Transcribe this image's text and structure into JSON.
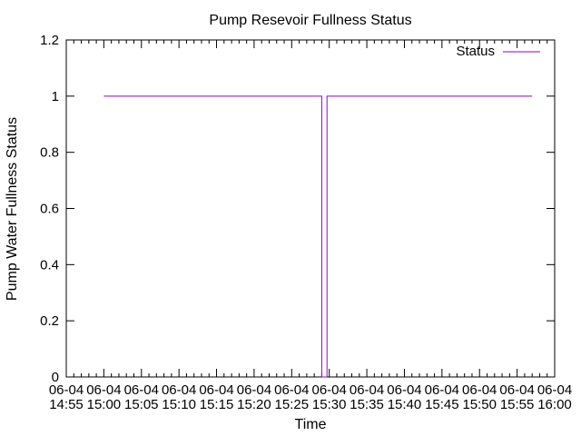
{
  "chart_data": {
    "type": "line",
    "title": "Pump Resevoir Fullness Status",
    "xlabel": "Time",
    "ylabel": "Pump Water Fullness Status",
    "xlim": [
      "14:55",
      "16:00"
    ],
    "ylim": [
      0,
      1.2
    ],
    "grid": false,
    "legend_position": "top-right",
    "x_ticks": [
      {
        "t": "14:55",
        "line1": "06-04",
        "line2": "14:55"
      },
      {
        "t": "15:00",
        "line1": "06-04",
        "line2": "15:00"
      },
      {
        "t": "15:05",
        "line1": "06-04",
        "line2": "15:05"
      },
      {
        "t": "15:10",
        "line1": "06-04",
        "line2": "15:10"
      },
      {
        "t": "15:15",
        "line1": "06-04",
        "line2": "15:15"
      },
      {
        "t": "15:20",
        "line1": "06-04",
        "line2": "15:20"
      },
      {
        "t": "15:25",
        "line1": "06-04",
        "line2": "15:25"
      },
      {
        "t": "15:30",
        "line1": "06-04",
        "line2": "15:30"
      },
      {
        "t": "15:35",
        "line1": "06-04",
        "line2": "15:35"
      },
      {
        "t": "15:40",
        "line1": "06-04",
        "line2": "15:40"
      },
      {
        "t": "15:45",
        "line1": "06-04",
        "line2": "15:45"
      },
      {
        "t": "15:50",
        "line1": "06-04",
        "line2": "15:50"
      },
      {
        "t": "15:55",
        "line1": "06-04",
        "line2": "15:55"
      },
      {
        "t": "16:00",
        "line1": "06-04",
        "line2": "16:00"
      }
    ],
    "y_ticks": [
      "0",
      "0.2",
      "0.4",
      "0.6",
      "0.8",
      "1",
      "1.2"
    ],
    "series": [
      {
        "name": "Status",
        "color": "#9400d3",
        "points": [
          {
            "x": "15:00",
            "y": 1
          },
          {
            "x": "15:29",
            "y": 1
          },
          {
            "x": "15:29",
            "y": 0
          },
          {
            "x": "15:29.7",
            "y": 0
          },
          {
            "x": "15:29.7",
            "y": 1
          },
          {
            "x": "15:57",
            "y": 1
          }
        ]
      }
    ]
  }
}
